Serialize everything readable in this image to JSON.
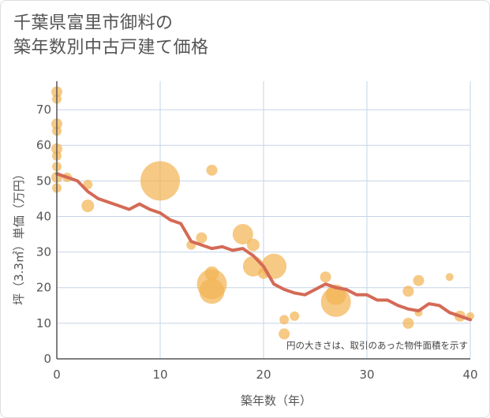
{
  "title": {
    "line1": "千葉県富里市御料の",
    "line2": "築年数別中古戸建て価格"
  },
  "colors": {
    "bubble": "#f3b454",
    "line": "#d46a56",
    "grid": "#c5d4e6",
    "axis": "#555555"
  },
  "chart_data": {
    "type": "scatter",
    "title": "千葉県富里市御料の築年数別中古戸建て価格",
    "xlabel": "築年数（年）",
    "ylabel": "坪（3.3㎡）単価（万円）",
    "xlim": [
      0,
      40
    ],
    "ylim": [
      0,
      78
    ],
    "xticks": [
      "0",
      "10",
      "20",
      "30",
      "40"
    ],
    "yticks": [
      "0",
      "10",
      "20",
      "30",
      "40",
      "50",
      "60",
      "70"
    ],
    "grid": true,
    "note": "円の大きさは、取引のあった物件面積を示す",
    "bubbles": [
      {
        "x": 0,
        "y": 75,
        "r": 7
      },
      {
        "x": 0,
        "y": 73,
        "r": 6
      },
      {
        "x": 0,
        "y": 66,
        "r": 7
      },
      {
        "x": 0,
        "y": 64,
        "r": 6
      },
      {
        "x": 0,
        "y": 59,
        "r": 7
      },
      {
        "x": 0,
        "y": 57,
        "r": 6
      },
      {
        "x": 0,
        "y": 54,
        "r": 6
      },
      {
        "x": 0,
        "y": 51,
        "r": 7
      },
      {
        "x": 0,
        "y": 48,
        "r": 6
      },
      {
        "x": 1,
        "y": 51,
        "r": 6
      },
      {
        "x": 3,
        "y": 49,
        "r": 6
      },
      {
        "x": 3,
        "y": 43,
        "r": 8
      },
      {
        "x": 10,
        "y": 50,
        "r": 25
      },
      {
        "x": 13,
        "y": 32,
        "r": 6
      },
      {
        "x": 14,
        "y": 34,
        "r": 7
      },
      {
        "x": 15,
        "y": 53,
        "r": 7
      },
      {
        "x": 15,
        "y": 24,
        "r": 9
      },
      {
        "x": 15,
        "y": 21,
        "r": 19
      },
      {
        "x": 15,
        "y": 19,
        "r": 16
      },
      {
        "x": 18,
        "y": 35,
        "r": 13
      },
      {
        "x": 19,
        "y": 32,
        "r": 8
      },
      {
        "x": 19,
        "y": 26,
        "r": 13
      },
      {
        "x": 20,
        "y": 24,
        "r": 7
      },
      {
        "x": 21,
        "y": 26,
        "r": 16
      },
      {
        "x": 22,
        "y": 11,
        "r": 6
      },
      {
        "x": 22,
        "y": 7,
        "r": 7
      },
      {
        "x": 23,
        "y": 12,
        "r": 6
      },
      {
        "x": 26,
        "y": 23,
        "r": 7
      },
      {
        "x": 27,
        "y": 18,
        "r": 13
      },
      {
        "x": 27,
        "y": 16,
        "r": 19
      },
      {
        "x": 34,
        "y": 19,
        "r": 7
      },
      {
        "x": 34,
        "y": 10,
        "r": 7
      },
      {
        "x": 35,
        "y": 22,
        "r": 7
      },
      {
        "x": 35,
        "y": 13,
        "r": 5
      },
      {
        "x": 38,
        "y": 23,
        "r": 5
      },
      {
        "x": 39,
        "y": 12,
        "r": 7
      },
      {
        "x": 40,
        "y": 12,
        "r": 5
      }
    ],
    "trend": {
      "x": [
        0,
        1,
        2,
        3,
        4,
        5,
        6,
        7,
        8,
        9,
        10,
        11,
        12,
        13,
        14,
        15,
        16,
        17,
        18,
        19,
        20,
        21,
        22,
        23,
        24,
        25,
        26,
        27,
        28,
        29,
        30,
        31,
        32,
        33,
        34,
        35,
        36,
        37,
        38,
        39,
        40
      ],
      "y": [
        52,
        51,
        50,
        47,
        45,
        44,
        43,
        42,
        43.5,
        42,
        41,
        39,
        38,
        33,
        32,
        31,
        31.5,
        30.5,
        31,
        29,
        26,
        21,
        19.5,
        18.5,
        18,
        19.5,
        21,
        20,
        19.5,
        18,
        18,
        16.5,
        16.5,
        15,
        14,
        13.5,
        15.5,
        15,
        13,
        12,
        11
      ]
    }
  }
}
